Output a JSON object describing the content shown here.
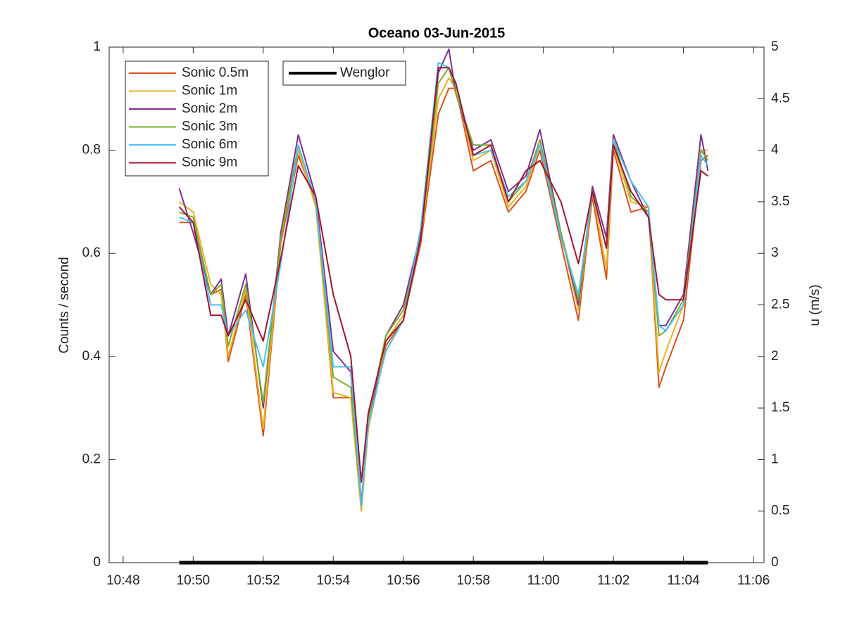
{
  "chart_data": {
    "type": "line",
    "title": "Oceano 03-Jun-2015",
    "ylabel": "Counts / second",
    "y2label": "u (m/s)",
    "x": [
      49.6,
      50,
      50.5,
      50.8,
      51,
      51.5,
      52,
      52.5,
      53,
      53.5,
      54,
      54.5,
      54.8,
      55,
      55.5,
      56,
      56.5,
      57,
      57.3,
      57.5,
      58,
      58.5,
      59,
      59.5,
      59.9,
      60.5,
      61,
      61.4,
      61.8,
      62,
      62.5,
      63,
      63.3,
      63.5,
      64,
      64.5,
      64.7
    ],
    "xlim": [
      47.6,
      66.3
    ],
    "xticks": [
      {
        "value": 48,
        "label": "10:48"
      },
      {
        "value": 50,
        "label": "10:50"
      },
      {
        "value": 52,
        "label": "10:52"
      },
      {
        "value": 54,
        "label": "10:54"
      },
      {
        "value": 56,
        "label": "10:56"
      },
      {
        "value": 58,
        "label": "10:58"
      },
      {
        "value": 60,
        "label": "11:00"
      },
      {
        "value": 62,
        "label": "11:02"
      },
      {
        "value": 64,
        "label": "11:04"
      },
      {
        "value": 66,
        "label": "11:06"
      }
    ],
    "ylim": [
      0,
      1
    ],
    "yticks": [
      0,
      0.2,
      0.4,
      0.6,
      0.8,
      1
    ],
    "y2lim": [
      0,
      5
    ],
    "y2ticks": [
      0,
      0.5,
      1,
      1.5,
      2,
      2.5,
      3,
      3.5,
      4,
      4.5,
      5
    ],
    "legend": "northwest",
    "series": [
      {
        "name": "Sonic 0.5m",
        "color": "#d95319",
        "axis": "y2",
        "values": [
          3.3,
          3.3,
          2.6,
          2.65,
          1.95,
          2.6,
          1.23,
          3.1,
          3.95,
          3.5,
          1.6,
          1.6,
          0.52,
          1.3,
          2.1,
          2.35,
          3.1,
          4.35,
          4.6,
          4.6,
          3.8,
          3.9,
          3.4,
          3.6,
          4.0,
          3.1,
          2.35,
          3.55,
          2.75,
          4.0,
          3.4,
          3.45,
          1.7,
          1.9,
          2.35,
          3.9,
          3.95
        ]
      },
      {
        "name": "Sonic 1m",
        "color": "#edb120",
        "axis": "y2",
        "values": [
          3.5,
          3.4,
          2.7,
          2.6,
          2.0,
          2.65,
          1.3,
          3.15,
          4.0,
          3.45,
          1.65,
          1.6,
          0.5,
          1.3,
          2.15,
          2.4,
          3.15,
          4.5,
          4.7,
          4.6,
          3.9,
          4.0,
          3.45,
          3.65,
          4.05,
          3.2,
          2.45,
          3.6,
          2.85,
          4.05,
          3.5,
          3.45,
          1.85,
          2.05,
          2.5,
          4.0,
          4.0
        ]
      },
      {
        "name": "Sonic 2m",
        "color": "#7e2f8e",
        "axis": "y2",
        "values": [
          3.63,
          3.2,
          2.6,
          2.75,
          2.2,
          2.8,
          1.5,
          3.2,
          4.15,
          3.55,
          2.05,
          1.85,
          0.58,
          1.35,
          2.2,
          2.5,
          3.2,
          4.75,
          4.98,
          4.55,
          4.0,
          4.1,
          3.6,
          3.75,
          4.2,
          3.2,
          2.5,
          3.65,
          3.15,
          4.15,
          3.7,
          3.35,
          2.3,
          2.3,
          2.6,
          4.15,
          3.8
        ]
      },
      {
        "name": "Sonic 3m",
        "color": "#77ac30",
        "axis": "y2",
        "values": [
          3.4,
          3.35,
          2.6,
          2.7,
          2.1,
          2.7,
          1.55,
          3.15,
          4.05,
          3.5,
          1.8,
          1.7,
          0.55,
          1.4,
          2.2,
          2.45,
          3.15,
          4.65,
          4.8,
          4.55,
          4.05,
          4.05,
          3.5,
          3.7,
          4.1,
          3.2,
          2.55,
          3.6,
          3.05,
          4.1,
          3.55,
          3.4,
          2.2,
          2.25,
          2.55,
          4.0,
          3.9
        ]
      },
      {
        "name": "Sonic 6m",
        "color": "#4dbeee",
        "axis": "y2",
        "values": [
          3.35,
          3.3,
          2.5,
          2.5,
          2.2,
          2.45,
          1.9,
          2.9,
          4.05,
          3.5,
          1.9,
          1.9,
          0.55,
          1.35,
          2.05,
          2.35,
          3.25,
          4.85,
          4.8,
          4.65,
          3.95,
          4.0,
          3.55,
          3.7,
          4.05,
          3.15,
          2.6,
          3.6,
          3.05,
          4.1,
          3.7,
          3.45,
          2.3,
          2.25,
          2.5,
          3.95,
          3.85
        ]
      },
      {
        "name": "Sonic 9m",
        "color": "#a2142f",
        "axis": "y2",
        "values": [
          3.45,
          3.3,
          2.4,
          2.4,
          2.2,
          2.55,
          2.15,
          2.95,
          3.85,
          3.55,
          2.6,
          2.0,
          0.78,
          1.45,
          2.15,
          2.35,
          3.15,
          4.8,
          4.8,
          4.65,
          3.95,
          4.05,
          3.5,
          3.8,
          3.9,
          3.5,
          2.9,
          3.6,
          3.05,
          4.05,
          3.6,
          3.35,
          2.6,
          2.55,
          2.55,
          3.8,
          3.75
        ]
      },
      {
        "name": "Wenglor",
        "color": "#000000",
        "x": [
          49.6,
          64.7
        ],
        "values": [
          0,
          0
        ]
      }
    ]
  }
}
